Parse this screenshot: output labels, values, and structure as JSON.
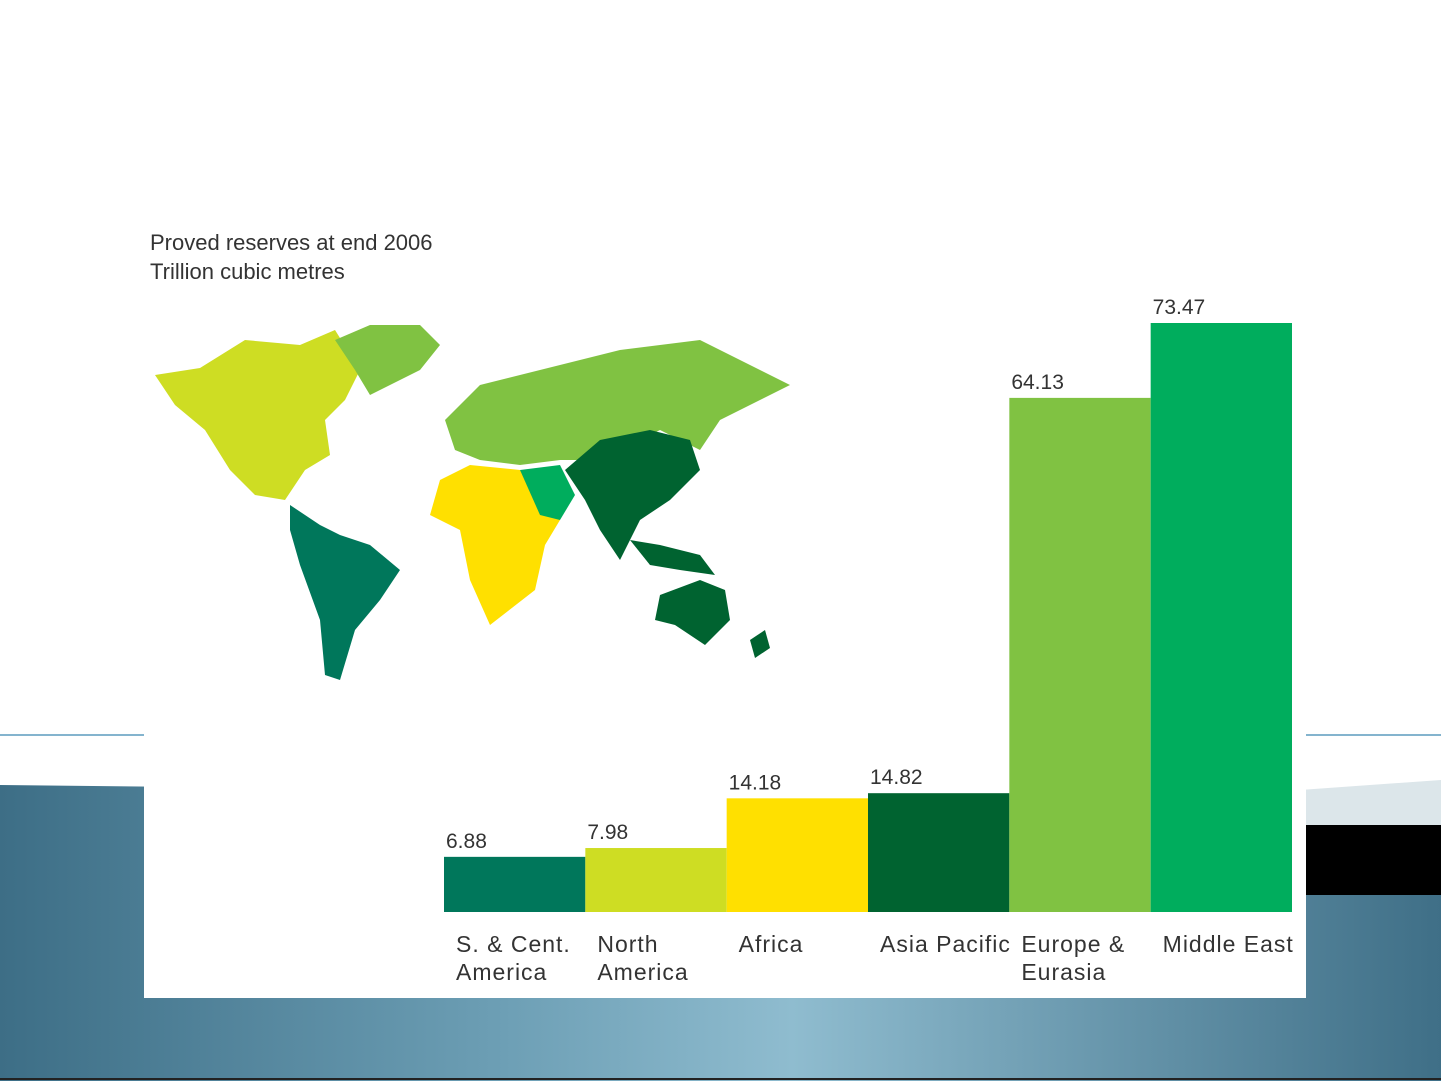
{
  "chart_data": {
    "type": "bar",
    "title": "Proved reserves at end 2006",
    "subtitle": "Trillion cubic metres",
    "categories": [
      "S. & Cent. America",
      "North America",
      "Africa",
      "Asia Pacific",
      "Europe & Eurasia",
      "Middle East"
    ],
    "values": [
      6.88,
      7.98,
      14.18,
      14.82,
      64.13,
      73.47
    ],
    "colors": [
      "#00775b",
      "#cedd23",
      "#ffe000",
      "#006330",
      "#80c242",
      "#00ad5d"
    ]
  }
}
